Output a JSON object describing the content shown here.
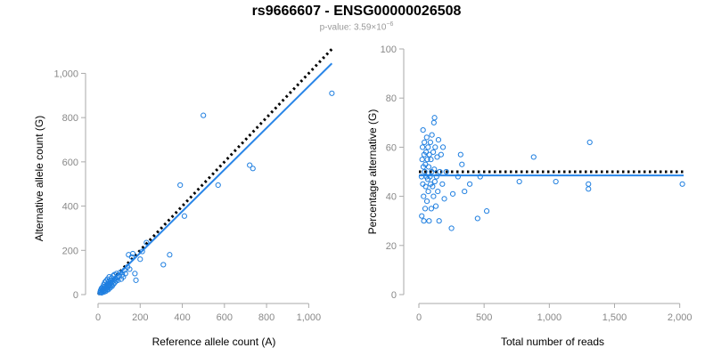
{
  "header": {
    "title": "rs9666607 - ENSG00000026508",
    "pvalue_prefix": "p-value: 3.59×10",
    "pvalue_exponent": "−6"
  },
  "colors": {
    "point": "#1f7fe0",
    "fit": "#2a86e8",
    "reference": "#000000",
    "axis": "#aaaaaa",
    "tick_text": "#888888"
  },
  "chart_data": [
    {
      "type": "scatter",
      "xlabel": "Reference allele count (A)",
      "ylabel": "Alternative allele count (G)",
      "xlim": [
        0,
        1100
      ],
      "ylim": [
        0,
        1050
      ],
      "xticks": [
        0,
        200,
        400,
        600,
        800,
        1000
      ],
      "xtick_labels": [
        "0",
        "200",
        "400",
        "600",
        "800",
        "1,000"
      ],
      "yticks": [
        0,
        200,
        400,
        600,
        800,
        1000
      ],
      "ytick_labels": [
        "0",
        "200",
        "400",
        "600",
        "800",
        "1,000"
      ],
      "grid": false,
      "reference_line": {
        "style": "dotted",
        "slope": 1,
        "x": [
          0,
          1110
        ]
      },
      "fit_line": {
        "style": "solid",
        "x": [
          0,
          1110
        ],
        "y": [
          0,
          1045
        ]
      },
      "points": [
        [
          10,
          10
        ],
        [
          12,
          18
        ],
        [
          14,
          12
        ],
        [
          15,
          25
        ],
        [
          17,
          8
        ],
        [
          18,
          30
        ],
        [
          20,
          15
        ],
        [
          22,
          22
        ],
        [
          23,
          35
        ],
        [
          25,
          18
        ],
        [
          27,
          45
        ],
        [
          28,
          12
        ],
        [
          30,
          28
        ],
        [
          32,
          55
        ],
        [
          33,
          20
        ],
        [
          35,
          38
        ],
        [
          36,
          15
        ],
        [
          38,
          62
        ],
        [
          40,
          30
        ],
        [
          42,
          48
        ],
        [
          44,
          25
        ],
        [
          45,
          70
        ],
        [
          47,
          40
        ],
        [
          48,
          22
        ],
        [
          50,
          58
        ],
        [
          52,
          35
        ],
        [
          53,
          80
        ],
        [
          55,
          45
        ],
        [
          57,
          30
        ],
        [
          58,
          65
        ],
        [
          60,
          52
        ],
        [
          62,
          40
        ],
        [
          64,
          75
        ],
        [
          65,
          55
        ],
        [
          67,
          38
        ],
        [
          70,
          60
        ],
        [
          72,
          85
        ],
        [
          74,
          48
        ],
        [
          76,
          68
        ],
        [
          78,
          90
        ],
        [
          80,
          55
        ],
        [
          82,
          72
        ],
        [
          85,
          62
        ],
        [
          88,
          95
        ],
        [
          90,
          78
        ],
        [
          95,
          65
        ],
        [
          100,
          85
        ],
        [
          105,
          100
        ],
        [
          110,
          70
        ],
        [
          115,
          90
        ],
        [
          120,
          80
        ],
        [
          125,
          110
        ],
        [
          130,
          95
        ],
        [
          140,
          125
        ],
        [
          145,
          180
        ],
        [
          150,
          115
        ],
        [
          160,
          170
        ],
        [
          165,
          185
        ],
        [
          175,
          95
        ],
        [
          180,
          65
        ],
        [
          200,
          160
        ],
        [
          210,
          195
        ],
        [
          230,
          235
        ],
        [
          310,
          135
        ],
        [
          340,
          180
        ],
        [
          390,
          495
        ],
        [
          410,
          355
        ],
        [
          500,
          810
        ],
        [
          570,
          495
        ],
        [
          720,
          585
        ],
        [
          735,
          570
        ],
        [
          1110,
          910
        ]
      ]
    },
    {
      "type": "scatter",
      "xlabel": "Total number of reads",
      "ylabel": "Percentage alternative (G)",
      "xlim": [
        0,
        2050
      ],
      "ylim": [
        0,
        100
      ],
      "xticks": [
        0,
        500,
        1000,
        1500,
        2000
      ],
      "xtick_labels": [
        "0",
        "500",
        "1,000",
        "1,500",
        "2,000"
      ],
      "yticks": [
        0,
        20,
        40,
        60,
        80,
        100
      ],
      "ytick_labels": [
        "0",
        "20",
        "40",
        "60",
        "80",
        "100"
      ],
      "grid": false,
      "reference_line": {
        "style": "dotted",
        "y": 50,
        "x": [
          0,
          2030
        ]
      },
      "fit_line": {
        "style": "solid",
        "y": 48.5,
        "x": [
          0,
          2030
        ]
      },
      "points": [
        [
          20,
          48
        ],
        [
          22,
          32
        ],
        [
          25,
          55
        ],
        [
          28,
          60
        ],
        [
          30,
          45
        ],
        [
          32,
          67
        ],
        [
          34,
          52
        ],
        [
          36,
          40
        ],
        [
          38,
          30
        ],
        [
          40,
          57
        ],
        [
          42,
          62
        ],
        [
          45,
          50
        ],
        [
          48,
          35
        ],
        [
          50,
          53
        ],
        [
          52,
          44
        ],
        [
          55,
          58
        ],
        [
          58,
          48
        ],
        [
          60,
          64
        ],
        [
          62,
          38
        ],
        [
          65,
          55
        ],
        [
          68,
          47
        ],
        [
          70,
          60
        ],
        [
          72,
          42
        ],
        [
          75,
          52
        ],
        [
          78,
          30
        ],
        [
          80,
          57
        ],
        [
          85,
          48
        ],
        [
          88,
          62
        ],
        [
          90,
          45
        ],
        [
          92,
          55
        ],
        [
          95,
          35
        ],
        [
          98,
          50
        ],
        [
          100,
          65
        ],
        [
          105,
          44
        ],
        [
          110,
          58
        ],
        [
          112,
          40
        ],
        [
          115,
          70
        ],
        [
          118,
          51
        ],
        [
          120,
          72
        ],
        [
          122,
          46
        ],
        [
          125,
          60
        ],
        [
          130,
          36
        ],
        [
          135,
          48
        ],
        [
          140,
          56
        ],
        [
          145,
          42
        ],
        [
          150,
          63
        ],
        [
          155,
          30
        ],
        [
          160,
          50
        ],
        [
          170,
          57
        ],
        [
          180,
          45
        ],
        [
          185,
          60
        ],
        [
          195,
          39
        ],
        [
          210,
          50
        ],
        [
          250,
          27
        ],
        [
          260,
          41
        ],
        [
          300,
          48
        ],
        [
          320,
          57
        ],
        [
          330,
          53
        ],
        [
          350,
          42
        ],
        [
          390,
          45
        ],
        [
          450,
          31
        ],
        [
          470,
          48
        ],
        [
          520,
          34
        ],
        [
          770,
          46
        ],
        [
          880,
          56
        ],
        [
          1050,
          46
        ],
        [
          1300,
          45
        ],
        [
          1300,
          43
        ],
        [
          1310,
          62
        ],
        [
          2020,
          45
        ]
      ]
    }
  ]
}
